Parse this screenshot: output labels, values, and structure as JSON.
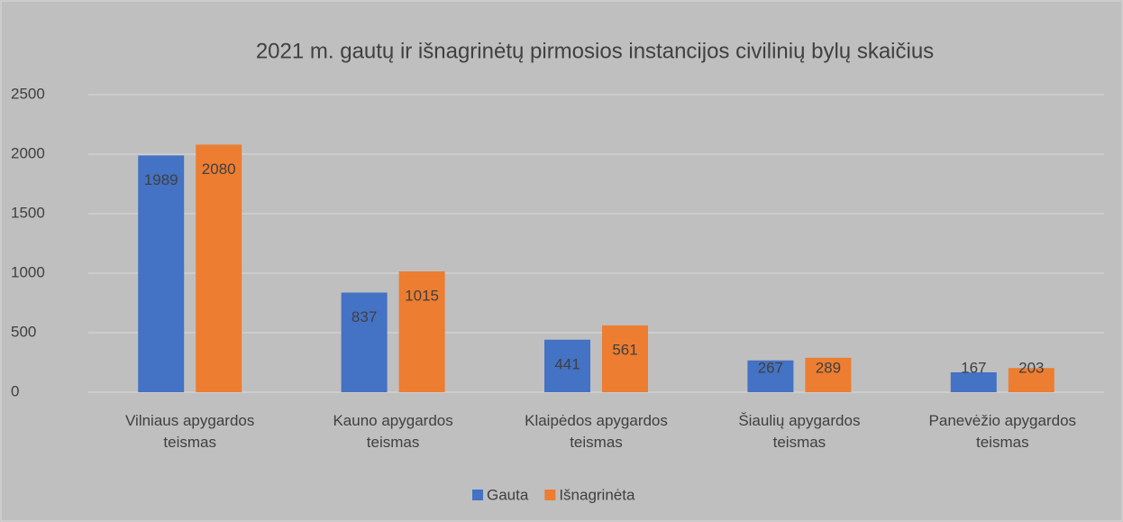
{
  "chart_data": {
    "type": "bar",
    "title": "2021 m. gautų ir išnagrinėtų pirmosios instancijos civilinių bylų skaičius",
    "categories": [
      "Vilniaus apygardos teismas",
      "Kauno apygardos teismas",
      "Klaipėdos apygardos teismas",
      "Šiaulių apygardos teismas",
      "Panevėžio apygardos teismas"
    ],
    "series": [
      {
        "name": "Gauta",
        "color": "#4472c4",
        "values": [
          1989,
          837,
          441,
          267,
          167
        ]
      },
      {
        "name": "Išnagrinėta",
        "color": "#ed7d31",
        "values": [
          2080,
          1015,
          561,
          289,
          203
        ]
      }
    ],
    "ylim": [
      0,
      2500
    ],
    "yticks": [
      0,
      500,
      1000,
      1500,
      2000,
      2500
    ],
    "grid": true,
    "legend": "bottom"
  }
}
